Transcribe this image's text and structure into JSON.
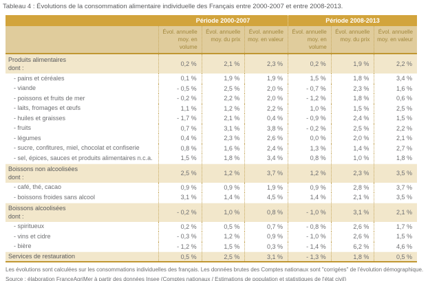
{
  "title": "Tableau 4 : Évolutions de la consommation alimentaire individuelle des Français entre 2000-2007 et entre 2008-2013.",
  "colors": {
    "header_gold": "#d2a43c",
    "subheader_tan": "#e0cc9c",
    "section_beige": "#f2e7cb",
    "rule_gold": "#c09732",
    "text_gray": "#6d6e71",
    "subheader_text": "#a1873c"
  },
  "table": {
    "periods": [
      "Période 2000-2007",
      "Période 2008-2013"
    ],
    "column_headers": [
      {
        "line1": "Évol. annuelle",
        "line2": "moy. en volume"
      },
      {
        "line1": "Évol. annuelle",
        "line2": "moy. du prix"
      },
      {
        "line1": "Évol. annuelle",
        "line2": "moy. en valeur"
      },
      {
        "line1": "Évol. annuelle",
        "line2": "moy. en volume"
      },
      {
        "line1": "Évol. annuelle",
        "line2": "moy. du prix"
      },
      {
        "line1": "Évol. annuelle",
        "line2": "moy. en valeur"
      }
    ],
    "rows": [
      {
        "type": "section",
        "label": "Produits alimentaires",
        "sublabel": "dont :",
        "values": [
          "0,2 %",
          "2,1 %",
          "2,3 %",
          "0,2 %",
          "1,9 %",
          "2,2 %"
        ]
      },
      {
        "type": "sub",
        "label": "- pains et céréales",
        "values": [
          "0,1 %",
          "1,9 %",
          "1,9 %",
          "1,5 %",
          "1,8 %",
          "3,4 %"
        ]
      },
      {
        "type": "sub",
        "label": "- viande",
        "values": [
          "- 0,5 %",
          "2,5 %",
          "2,0 %",
          "- 0,7 %",
          "2,3 %",
          "1,6 %"
        ]
      },
      {
        "type": "sub",
        "label": "- poissons et fruits de mer",
        "values": [
          "- 0,2 %",
          "2,2 %",
          "2,0 %",
          "- 1,2 %",
          "1,8 %",
          "0,6 %"
        ]
      },
      {
        "type": "sub",
        "label": "- laits, fromages et œufs",
        "values": [
          "1,1 %",
          "1,2 %",
          "2,2 %",
          "1,0 %",
          "1,5 %",
          "2,5 %"
        ]
      },
      {
        "type": "sub",
        "label": "- huiles et graisses",
        "values": [
          "- 1,7 %",
          "2,1 %",
          "0,4 %",
          "- 0,9 %",
          "2,4 %",
          "1,5 %"
        ]
      },
      {
        "type": "sub",
        "label": "- fruits",
        "values": [
          "0,7 %",
          "3,1 %",
          "3,8 %",
          "- 0,2 %",
          "2,5 %",
          "2,2 %"
        ]
      },
      {
        "type": "sub",
        "label": "- légumes",
        "values": [
          "0,4 %",
          "2,3 %",
          "2,6 %",
          "0,0 %",
          "2,0 %",
          "2,1 %"
        ]
      },
      {
        "type": "sub",
        "label": "- sucre, confitures, miel, chocolat et confiserie",
        "values": [
          "0,8 %",
          "1,6 %",
          "2,4 %",
          "1,3 %",
          "1,4 %",
          "2,7 %"
        ]
      },
      {
        "type": "sub",
        "label": "- sel, épices, sauces et produits alimentaires n.c.a.",
        "values": [
          "1,5 %",
          "1,8 %",
          "3,4 %",
          "0,8 %",
          "1,0 %",
          "1,8 %"
        ]
      },
      {
        "type": "section",
        "label": "Boissons non alcoolisées",
        "sublabel": "dont :",
        "values": [
          "2,5 %",
          "1,2 %",
          "3,7 %",
          "1,2 %",
          "2,3 %",
          "3,5 %"
        ]
      },
      {
        "type": "sub",
        "label": "- café, thé, cacao",
        "values": [
          "0,9 %",
          "0,9 %",
          "1,9 %",
          "0,9 %",
          "2,8 %",
          "3,7 %"
        ]
      },
      {
        "type": "sub",
        "label": "- boissons froides sans alcool",
        "values": [
          "3,1 %",
          "1,4 %",
          "4,5 %",
          "1,4 %",
          "2,1 %",
          "3,5 %"
        ]
      },
      {
        "type": "section",
        "label": "Boissons alcoolisées",
        "sublabel": "dont :",
        "values": [
          "- 0,2 %",
          "1,0 %",
          "0,8 %",
          "- 1,0 %",
          "3,1 %",
          "2,1 %"
        ]
      },
      {
        "type": "sub",
        "label": "- spiritueux",
        "values": [
          "0,2 %",
          "0,5 %",
          "0,7 %",
          "- 0,8 %",
          "2,6 %",
          "1,7 %"
        ]
      },
      {
        "type": "sub",
        "label": "- vins et cidre",
        "values": [
          "- 0,3 %",
          "1,2 %",
          "0,9 %",
          "- 1,0 %",
          "2,6 %",
          "1,5 %"
        ]
      },
      {
        "type": "sub",
        "label": "- bière",
        "values": [
          "- 1,2 %",
          "1,5 %",
          "0,3 %",
          "- 1,4 %",
          "6,2 %",
          "4,6 %"
        ]
      },
      {
        "type": "total",
        "label": "Services de restauration",
        "values": [
          "0,5 %",
          "2,5 %",
          "3,1 %",
          "- 1,3 %",
          "1,8 %",
          "0,5 %"
        ]
      }
    ]
  },
  "footnotes": [
    "Les évolutions sont calculées sur les consommations individuelles des français. Les données brutes des Comptes nationaux sont \"corrigées\" de l'évolution démographique.",
    "Source : élaboration FranceAgriMer à partir des données Insee (Comptes nationaux / Estimations de population et statistiques de l'état civil)"
  ]
}
